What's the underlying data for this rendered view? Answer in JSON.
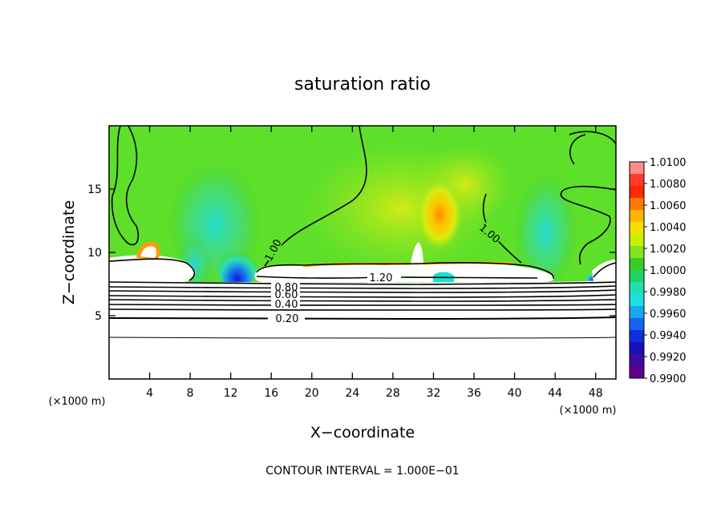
{
  "chart_data": {
    "type": "heatmap",
    "title": "saturation ratio",
    "xlabel": "X−coordinate",
    "ylabel": "Z−coordinate",
    "x_unit": "(×1000 m)",
    "z_unit": "(×1000 m)",
    "xlim": [
      0,
      50
    ],
    "ylim": [
      0,
      20
    ],
    "x_ticks": [
      4,
      8,
      12,
      16,
      20,
      24,
      28,
      32,
      36,
      40,
      44,
      48
    ],
    "y_ticks": [
      5,
      10,
      15
    ],
    "colorbar": {
      "labels": [
        "1.0100",
        "1.0080",
        "1.0060",
        "1.0040",
        "1.0020",
        "1.0000",
        "0.9980",
        "0.9960",
        "0.9940",
        "0.9920",
        "0.9900"
      ],
      "colors": [
        "#ff8a8a",
        "#ff3c2a",
        "#ff2a00",
        "#ff7a00",
        "#ffb400",
        "#f4e000",
        "#c8f000",
        "#7ee61e",
        "#39cc27",
        "#1fd466",
        "#20e0b0",
        "#1ce0e0",
        "#18a8f0",
        "#1664f0",
        "#0f2ee0",
        "#1a10b8",
        "#3c0c9c",
        "#62008a"
      ]
    },
    "contour_labels": [
      "1.00",
      "1.00",
      "1.20",
      "0.80",
      "0.60",
      "0.40",
      "0.20"
    ],
    "contour_interval_note": "CONTOUR INTERVAL = 1.000E−01"
  }
}
